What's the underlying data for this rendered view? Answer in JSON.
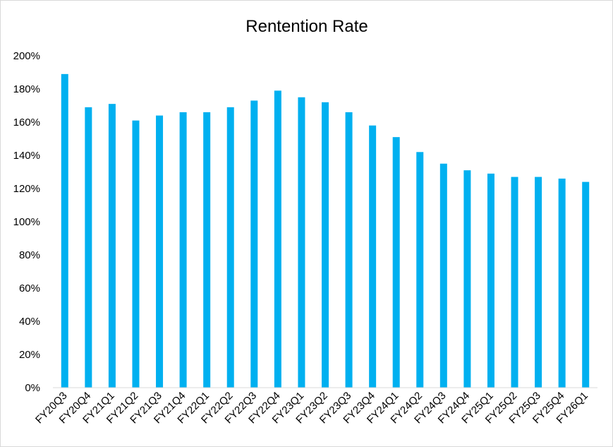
{
  "chart_data": {
    "type": "bar",
    "title": "Rentention Rate",
    "xlabel": "",
    "ylabel": "",
    "categories": [
      "FY20Q3",
      "FY20Q4",
      "FY21Q1",
      "FY21Q2",
      "FY21Q3",
      "FY21Q4",
      "FY22Q1",
      "FY22Q2",
      "FY22Q3",
      "FY22Q4",
      "FY23Q1",
      "FY23Q2",
      "FY23Q3",
      "FY23Q4",
      "FY24Q1",
      "FY24Q2",
      "FY24Q3",
      "FY24Q4",
      "FY25Q1",
      "FY25Q2",
      "FY25Q3",
      "FY25Q4",
      "FY26Q1"
    ],
    "values": [
      189,
      169,
      171,
      161,
      164,
      166,
      166,
      169,
      173,
      179,
      175,
      172,
      166,
      158,
      151,
      142,
      135,
      131,
      129,
      127,
      127,
      126,
      124
    ],
    "value_unit": "%",
    "ylim": [
      0,
      200
    ],
    "yticks": [
      "0%",
      "20%",
      "40%",
      "60%",
      "80%",
      "100%",
      "120%",
      "140%",
      "160%",
      "180%",
      "200%"
    ],
    "grid": false,
    "legend": "none",
    "bar_color": "#00B0F0",
    "axis_color": "#D9D9D9"
  }
}
